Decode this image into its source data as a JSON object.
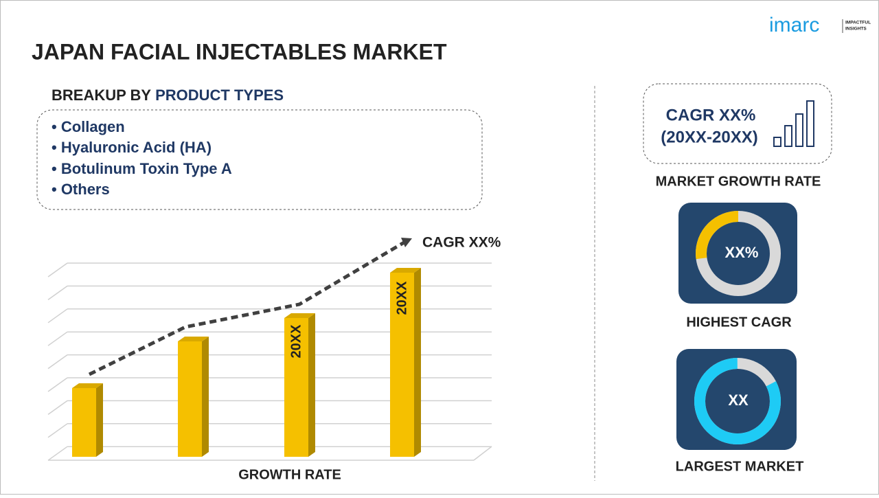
{
  "logo": {
    "brand": "imarc",
    "tagline_1": "IMPACTFUL",
    "tagline_2": "INSIGHTS"
  },
  "header": {
    "title": "JAPAN FACIAL INJECTABLES MARKET"
  },
  "breakup": {
    "prefix": "BREAKUP BY",
    "heading": "PRODUCT TYPES",
    "items": [
      "• Collagen",
      "• Hyaluronic Acid (HA)",
      "• Botulinum Toxin Type A",
      "• Others"
    ]
  },
  "growth_chart": {
    "trend_label": "CAGR XX%",
    "bar_labels": [
      "20XX",
      "20XX"
    ],
    "caption": "GROWTH RATE"
  },
  "market_growth": {
    "line_1": "CAGR XX%",
    "line_2": "(20XX-20XX)",
    "caption": "MARKET GROWTH RATE"
  },
  "highest_cagr": {
    "value": "XX%",
    "caption": "HIGHEST CAGR"
  },
  "largest_market": {
    "value": "XX",
    "caption": "LARGEST MARKET"
  }
}
